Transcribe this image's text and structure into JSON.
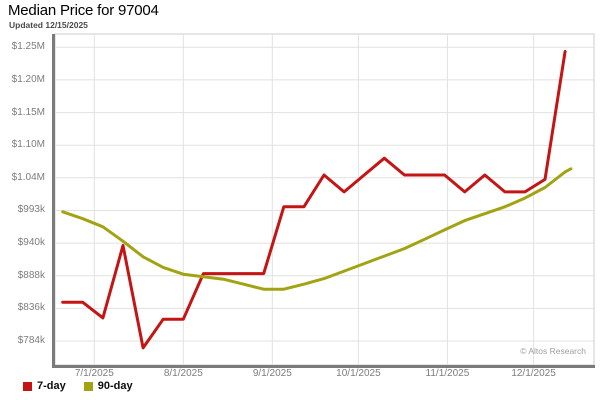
{
  "header": {
    "title": "Median Price for 97004",
    "subtitle": "Updated 12/15/2025"
  },
  "watermark": "© Altos Research",
  "colors": {
    "series_7day": "#c41414",
    "series_90day": "#a2a312",
    "gridline": "#e1e1e1",
    "plot_border": "#cccccc",
    "axis_spine": "#7b7b7b",
    "axis_text": "#7d7d7d"
  },
  "legend": {
    "items": [
      {
        "label": "7-day",
        "color": "#c41414"
      },
      {
        "label": "90-day",
        "color": "#a2a312"
      }
    ]
  },
  "chart_data": {
    "type": "line",
    "title": "Median Price for 97004",
    "subtitle": "Updated 12/15/2025",
    "grid": true,
    "legend_position": "bottom-left",
    "x_axis": {
      "ticks": [
        "7/1/2025",
        "8/1/2025",
        "9/1/2025",
        "10/1/2025",
        "11/1/2025",
        "12/1/2025"
      ]
    },
    "y_axis": {
      "ticks": [
        {
          "label": "$1.25M",
          "value": 1254700
        },
        {
          "label": "$1.20M",
          "value": 1202400
        },
        {
          "label": "$1.15M",
          "value": 1150100
        },
        {
          "label": "$1.10M",
          "value": 1097800
        },
        {
          "label": "$1.04M",
          "value": 1045500
        },
        {
          "label": "$993k",
          "value": 993200
        },
        {
          "label": "$940k",
          "value": 940900
        },
        {
          "label": "$888k",
          "value": 888600
        },
        {
          "label": "$836k",
          "value": 836300
        },
        {
          "label": "$784k",
          "value": 784000
        }
      ]
    },
    "series": [
      {
        "name": "7-day",
        "color": "#c41414",
        "points": [
          {
            "date": "6/20/2025",
            "value": 846000
          },
          {
            "date": "6/27/2025",
            "value": 846000
          },
          {
            "date": "7/4/2025",
            "value": 821000
          },
          {
            "date": "7/11/2025",
            "value": 937000
          },
          {
            "date": "7/18/2025",
            "value": 773000
          },
          {
            "date": "7/25/2025",
            "value": 819000
          },
          {
            "date": "8/1/2025",
            "value": 819000
          },
          {
            "date": "8/8/2025",
            "value": 892000
          },
          {
            "date": "8/15/2025",
            "value": 892000
          },
          {
            "date": "8/22/2025",
            "value": 892000
          },
          {
            "date": "8/29/2025",
            "value": 892000
          },
          {
            "date": "9/5/2025",
            "value": 999000
          },
          {
            "date": "9/12/2025",
            "value": 999000
          },
          {
            "date": "9/19/2025",
            "value": 1050000
          },
          {
            "date": "9/26/2025",
            "value": 1023000
          },
          {
            "date": "10/3/2025",
            "value": 1050000
          },
          {
            "date": "10/10/2025",
            "value": 1077000
          },
          {
            "date": "10/17/2025",
            "value": 1050000
          },
          {
            "date": "10/24/2025",
            "value": 1050000
          },
          {
            "date": "10/31/2025",
            "value": 1050000
          },
          {
            "date": "11/7/2025",
            "value": 1023000
          },
          {
            "date": "11/14/2025",
            "value": 1050000
          },
          {
            "date": "11/21/2025",
            "value": 1023000
          },
          {
            "date": "11/28/2025",
            "value": 1023000
          },
          {
            "date": "12/5/2025",
            "value": 1043000
          },
          {
            "date": "12/12/2025",
            "value": 1248000
          }
        ]
      },
      {
        "name": "90-day",
        "color": "#a2a312",
        "points": [
          {
            "date": "6/20/2025",
            "value": 991000
          },
          {
            "date": "6/27/2025",
            "value": 980000
          },
          {
            "date": "7/4/2025",
            "value": 967000
          },
          {
            "date": "7/11/2025",
            "value": 944000
          },
          {
            "date": "7/18/2025",
            "value": 919000
          },
          {
            "date": "7/25/2025",
            "value": 902000
          },
          {
            "date": "8/1/2025",
            "value": 891000
          },
          {
            "date": "8/8/2025",
            "value": 887000
          },
          {
            "date": "8/15/2025",
            "value": 883000
          },
          {
            "date": "8/22/2025",
            "value": 875000
          },
          {
            "date": "8/29/2025",
            "value": 867000
          },
          {
            "date": "9/5/2025",
            "value": 867000
          },
          {
            "date": "9/12/2025",
            "value": 875000
          },
          {
            "date": "9/19/2025",
            "value": 884000
          },
          {
            "date": "9/26/2025",
            "value": 896000
          },
          {
            "date": "10/3/2025",
            "value": 908000
          },
          {
            "date": "10/10/2025",
            "value": 920000
          },
          {
            "date": "10/17/2025",
            "value": 932000
          },
          {
            "date": "10/24/2025",
            "value": 947000
          },
          {
            "date": "10/31/2025",
            "value": 962000
          },
          {
            "date": "11/7/2025",
            "value": 977000
          },
          {
            "date": "11/14/2025",
            "value": 988000
          },
          {
            "date": "11/21/2025",
            "value": 999000
          },
          {
            "date": "11/28/2025",
            "value": 1013000
          },
          {
            "date": "12/5/2025",
            "value": 1030000
          },
          {
            "date": "12/12/2025",
            "value": 1055000
          },
          {
            "date": "12/14/2025",
            "value": 1060000
          }
        ]
      }
    ]
  }
}
